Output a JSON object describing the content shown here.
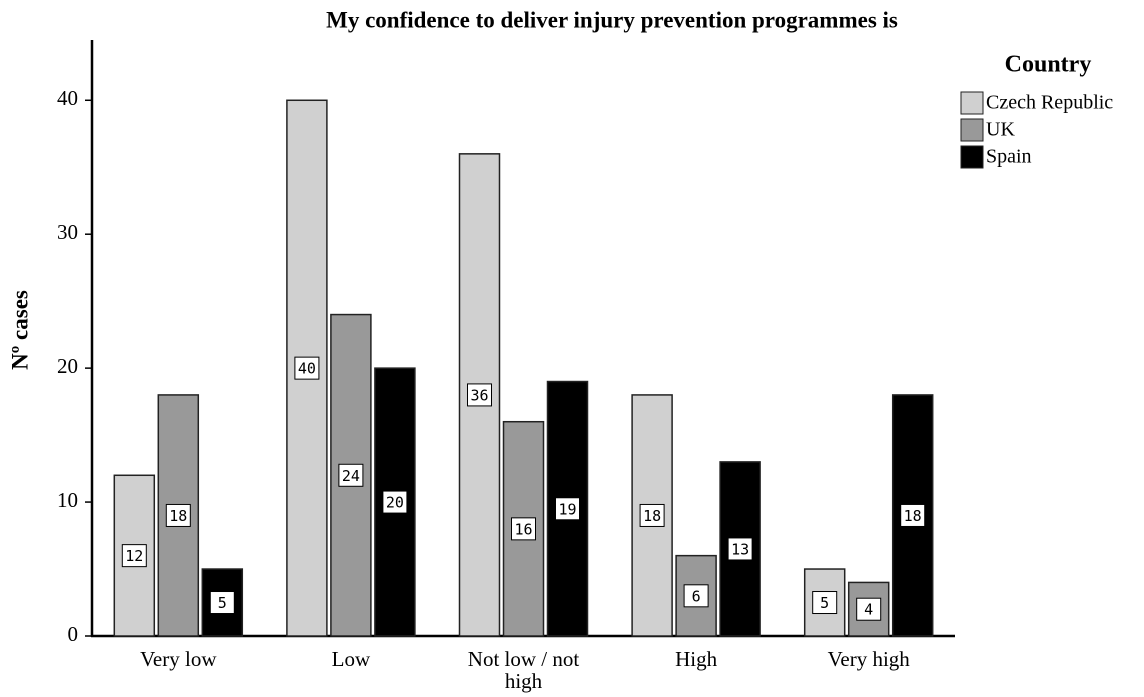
{
  "chart_data": {
    "type": "bar",
    "title": "My confidence to deliver injury prevention programmes is",
    "y_label": "Nº cases",
    "categories": [
      "Very low",
      "Low",
      "Not low / not high",
      "High",
      "Very high"
    ],
    "series": [
      {
        "name": "Czech Republic",
        "color": "#d0d0d0",
        "values": [
          12,
          40,
          36,
          18,
          5
        ]
      },
      {
        "name": "UK",
        "color": "#999999",
        "values": [
          18,
          24,
          16,
          6,
          4
        ]
      },
      {
        "name": "Spain",
        "color": "#000000",
        "values": [
          5,
          20,
          19,
          13,
          18
        ]
      }
    ],
    "ylim": [
      0,
      44.5
    ],
    "yticks": [
      0,
      10,
      20,
      30,
      40
    ],
    "legend_title": "Country",
    "legend": "right",
    "grid": false
  }
}
